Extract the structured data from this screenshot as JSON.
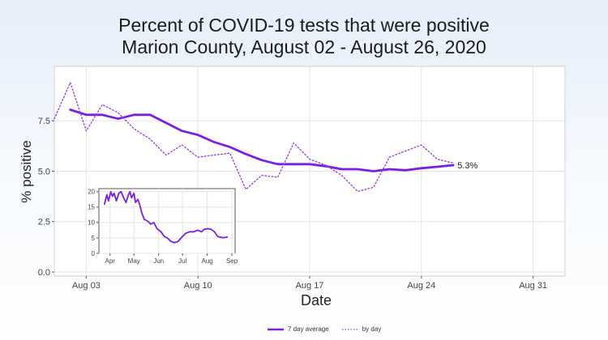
{
  "title_line1": "Percent of COVID-19 tests that were positive",
  "title_line2": "Marion County, August 02 - August 26, 2020",
  "colors": {
    "avg": "#7a1ee6",
    "day": "#9b3ef0",
    "panel": "#ffffff",
    "grid": "#e4e4e4"
  },
  "chart_data": [
    {
      "type": "line",
      "xlabel": "Date",
      "ylabel": "% positive",
      "xlim": [
        "2020-08-01",
        "2020-09-02"
      ],
      "ylim": [
        -0.2,
        10.2
      ],
      "x_ticks": [
        "Aug 03",
        "Aug 10",
        "Aug 17",
        "Aug 24",
        "Aug 31"
      ],
      "x_tick_dates": [
        "2020-08-03",
        "2020-08-10",
        "2020-08-17",
        "2020-08-24",
        "2020-08-31"
      ],
      "y_ticks": [
        "0.0",
        "2.5",
        "5.0",
        "7.5"
      ],
      "y_tick_values": [
        0,
        2.5,
        5,
        7.5
      ],
      "grid": true,
      "legend_position": "bottom",
      "series": [
        {
          "name": "7 day average",
          "style": "solid",
          "x": [
            "2020-08-02",
            "2020-08-03",
            "2020-08-04",
            "2020-08-05",
            "2020-08-06",
            "2020-08-07",
            "2020-08-08",
            "2020-08-09",
            "2020-08-10",
            "2020-08-11",
            "2020-08-12",
            "2020-08-13",
            "2020-08-14",
            "2020-08-15",
            "2020-08-16",
            "2020-08-17",
            "2020-08-18",
            "2020-08-19",
            "2020-08-20",
            "2020-08-21",
            "2020-08-22",
            "2020-08-23",
            "2020-08-24",
            "2020-08-25",
            "2020-08-26"
          ],
          "values": [
            8.05,
            7.8,
            7.8,
            7.6,
            7.8,
            7.8,
            7.4,
            7.0,
            6.8,
            6.45,
            6.2,
            5.85,
            5.55,
            5.35,
            5.35,
            5.35,
            5.25,
            5.1,
            5.1,
            5.0,
            5.1,
            5.05,
            5.15,
            5.22,
            5.3
          ]
        },
        {
          "name": "by day",
          "style": "dotted",
          "x": [
            "2020-08-01",
            "2020-08-02",
            "2020-08-03",
            "2020-08-04",
            "2020-08-05",
            "2020-08-06",
            "2020-08-07",
            "2020-08-08",
            "2020-08-09",
            "2020-08-10",
            "2020-08-11",
            "2020-08-12",
            "2020-08-13",
            "2020-08-14",
            "2020-08-15",
            "2020-08-16",
            "2020-08-17",
            "2020-08-18",
            "2020-08-19",
            "2020-08-20",
            "2020-08-21",
            "2020-08-22",
            "2020-08-23",
            "2020-08-24",
            "2020-08-25",
            "2020-08-26"
          ],
          "values": [
            7.6,
            9.4,
            7.0,
            8.3,
            7.9,
            7.1,
            6.6,
            5.8,
            6.3,
            5.7,
            5.8,
            5.9,
            4.1,
            4.8,
            4.7,
            6.4,
            5.6,
            5.3,
            4.8,
            4.0,
            4.2,
            5.7,
            6.0,
            6.3,
            5.6,
            5.4
          ]
        }
      ],
      "annotations": [
        {
          "text": "5.3%",
          "x": "2020-08-26",
          "y": 5.3
        }
      ]
    },
    {
      "type": "line",
      "xlim": [
        "2020-03-18",
        "2020-09-05"
      ],
      "ylim": [
        0,
        21
      ],
      "x_ticks": [
        "Apr",
        "May",
        "Jun",
        "Jul",
        "Aug",
        "Sep"
      ],
      "x_tick_dates": [
        "2020-04-01",
        "2020-05-01",
        "2020-06-01",
        "2020-07-01",
        "2020-08-01",
        "2020-09-01"
      ],
      "y_ticks": [
        "0",
        "5",
        "10",
        "15",
        "20"
      ],
      "y_tick_values": [
        0,
        5,
        10,
        15,
        20
      ],
      "grid": true,
      "series": [
        {
          "style": "solid",
          "x": [
            "2020-03-25",
            "2020-03-28",
            "2020-03-30",
            "2020-04-02",
            "2020-04-04",
            "2020-04-06",
            "2020-04-09",
            "2020-04-12",
            "2020-04-15",
            "2020-04-18",
            "2020-04-21",
            "2020-04-24",
            "2020-04-26",
            "2020-04-28",
            "2020-05-01",
            "2020-05-03",
            "2020-05-06",
            "2020-05-08",
            "2020-05-11",
            "2020-05-14",
            "2020-05-18",
            "2020-05-22",
            "2020-05-26",
            "2020-05-30",
            "2020-06-04",
            "2020-06-08",
            "2020-06-12",
            "2020-06-16",
            "2020-06-20",
            "2020-06-25",
            "2020-07-01",
            "2020-07-05",
            "2020-07-10",
            "2020-07-15",
            "2020-07-20",
            "2020-07-25",
            "2020-07-28",
            "2020-08-02",
            "2020-08-06",
            "2020-08-10",
            "2020-08-14",
            "2020-08-18",
            "2020-08-22",
            "2020-08-26"
          ],
          "values": [
            16,
            19,
            17,
            20,
            18.5,
            19.5,
            17,
            19.5,
            20,
            18,
            16.5,
            19,
            20,
            18,
            19.5,
            16.5,
            17.5,
            16,
            13,
            11,
            10.5,
            9.5,
            10,
            8,
            7,
            5.5,
            5,
            4,
            3.5,
            3.8,
            5.5,
            6.5,
            7,
            7,
            7.5,
            7,
            7.8,
            8,
            7.8,
            7,
            5.5,
            5.2,
            5.1,
            5.3
          ]
        }
      ]
    }
  ],
  "legend": [
    {
      "label": "7 day average"
    },
    {
      "label": "by day"
    }
  ]
}
